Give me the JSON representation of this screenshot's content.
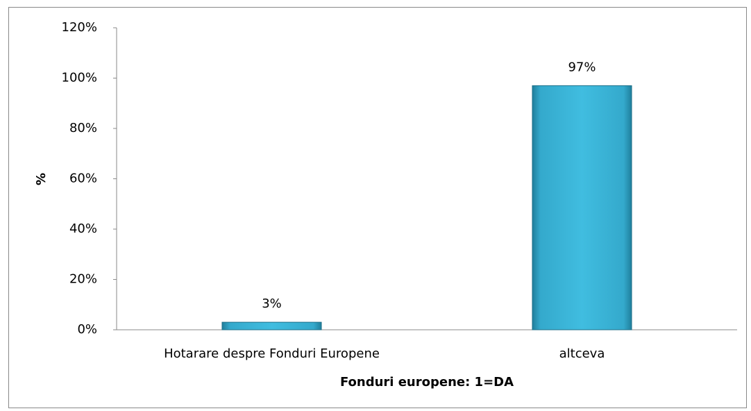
{
  "chart_data": {
    "type": "bar",
    "categories": [
      "Hotarare despre Fonduri Europene",
      "altceva"
    ],
    "values": [
      3,
      97
    ],
    "value_labels": [
      "3%",
      "97%"
    ],
    "color": "#3cb6da",
    "xlabel": "Fonduri europene: 1=DA",
    "ylabel": "%",
    "ylim": [
      0,
      120
    ],
    "yticks": [
      {
        "value": 0,
        "label": "0%"
      },
      {
        "value": 20,
        "label": "20%"
      },
      {
        "value": 40,
        "label": "40%"
      },
      {
        "value": 60,
        "label": "60%"
      },
      {
        "value": 80,
        "label": "80%"
      },
      {
        "value": 100,
        "label": "100%"
      },
      {
        "value": 120,
        "label": "120%"
      }
    ],
    "grid": false
  }
}
